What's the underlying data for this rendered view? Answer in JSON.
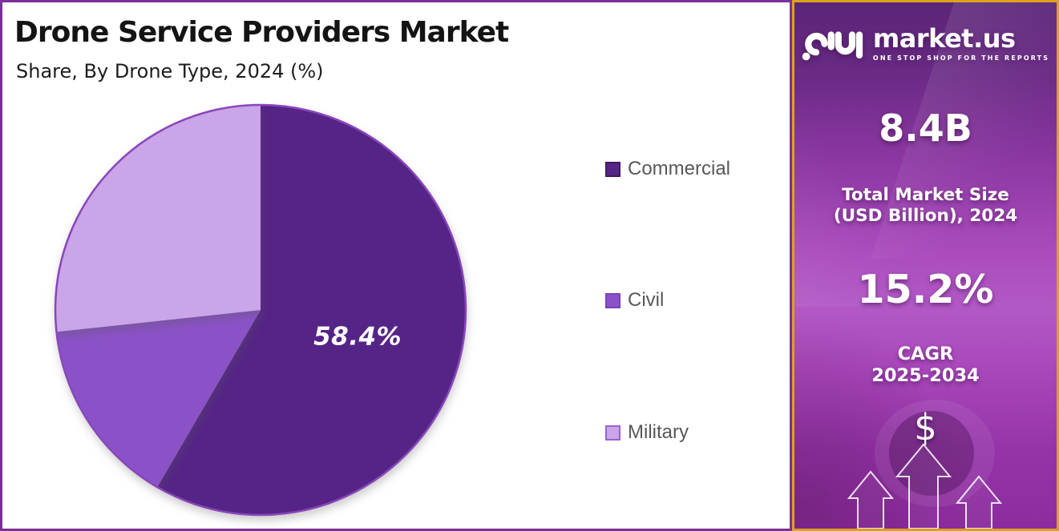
{
  "header": {
    "title": "Drone Service Providers Market",
    "subtitle": "Share, By Drone Type, 2024 (%)"
  },
  "chart_data": {
    "type": "pie",
    "title": "Drone Service Providers Market",
    "subtitle": "Share, By Drone Type, 2024 (%)",
    "unit": "%",
    "legend_position": "right",
    "start_angle_deg": 0,
    "direction": "clockwise",
    "series": [
      {
        "name": "Commercial",
        "value": 58.4,
        "label": "58.4%",
        "color": "#552487",
        "border": "#3e1a63"
      },
      {
        "name": "Civil",
        "value": 14.9,
        "label": "",
        "color": "#8b52c8",
        "border": "#7a41b8"
      },
      {
        "name": "Military",
        "value": 26.7,
        "label": "",
        "color": "#caa5e7",
        "border": "#9a63cf"
      }
    ]
  },
  "sidebar": {
    "brand": {
      "name": "market.us",
      "tagline": "ONE STOP SHOP FOR THE REPORTS"
    },
    "market_size": {
      "value": "8.4B",
      "label_line1": "Total Market Size",
      "label_line2": "(USD Billion), 2024"
    },
    "cagr": {
      "value": "15.2%",
      "label_line1": "CAGR",
      "label_line2": "2025-2034"
    },
    "dollar_symbol": "$"
  },
  "colors": {
    "panel_border": "#7b2f9b",
    "sidebar_border_gold": "#dda11e",
    "pie_rim": "#8a46bb",
    "legend_text": "#58585a",
    "title_text": "#141414",
    "sidebar_gradient_top": "#5b2578",
    "sidebar_gradient_mid": "#b259c6",
    "sidebar_gradient_bottom": "#8c2c9e",
    "text_white": "#ffffff"
  }
}
